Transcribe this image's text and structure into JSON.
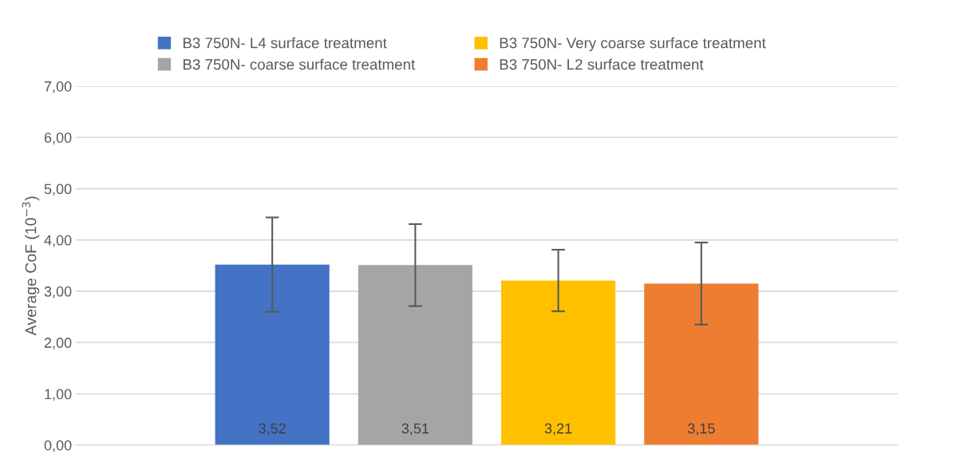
{
  "chart_data": {
    "type": "bar",
    "ylabel": "Average CoF (10$^{−3}$)",
    "categories": [
      null
    ],
    "series": [
      {
        "name": "B3 750N- L4 surface treatment",
        "color": "#4472c4",
        "values": [
          3.52
        ],
        "errors": [
          0.92
        ],
        "value_labels": [
          "3,52"
        ]
      },
      {
        "name": "B3 750N- coarse surface treatment",
        "color": "#a5a5a5",
        "values": [
          3.51
        ],
        "errors": [
          0.8
        ],
        "value_labels": [
          "3,51"
        ]
      },
      {
        "name": "B3 750N- Very coarse surface treatment",
        "color": "#ffc000",
        "values": [
          3.21
        ],
        "errors": [
          0.6
        ],
        "value_labels": [
          "3,21"
        ]
      },
      {
        "name": "B3 750N- L2 surface treatment",
        "color": "#ed7d31",
        "values": [
          3.15
        ],
        "errors": [
          0.8
        ],
        "value_labels": [
          "3,15"
        ]
      }
    ],
    "ylim": [
      0,
      7
    ],
    "yticks": [
      {
        "value": 0,
        "label": "0,00"
      },
      {
        "value": 1,
        "label": "1,00"
      },
      {
        "value": 2,
        "label": "2,00"
      },
      {
        "value": 3,
        "label": "3,00"
      },
      {
        "value": 4,
        "label": "4,00"
      },
      {
        "value": 5,
        "label": "5,00"
      },
      {
        "value": 6,
        "label": "6,00"
      },
      {
        "value": 7,
        "label": "7,00"
      }
    ],
    "grid": "y",
    "legend": "top"
  }
}
